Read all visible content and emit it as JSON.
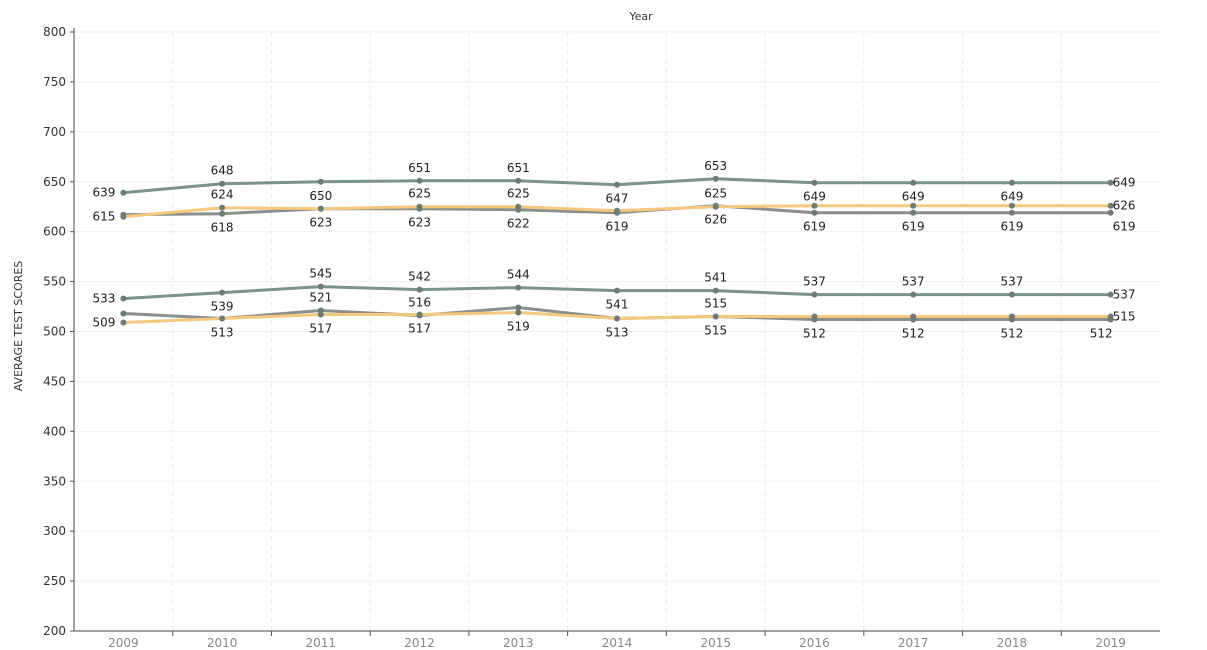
{
  "chart_data": {
    "type": "line",
    "title": "Year",
    "xlabel": "",
    "ylabel": "AVERAGE TEST SCORES",
    "categories": [
      "2009",
      "2010",
      "2011",
      "2012",
      "2013",
      "2014",
      "2015",
      "2016",
      "2017",
      "2018",
      "2019"
    ],
    "ylim": [
      200,
      800
    ],
    "yticks": [
      200,
      250,
      300,
      350,
      400,
      450,
      500,
      550,
      600,
      650,
      700,
      750,
      800
    ],
    "grid": true,
    "legend": "none",
    "series": [
      {
        "color": "#7a9488",
        "values": [
          639,
          648,
          650,
          651,
          651,
          647,
          653,
          649,
          649,
          649,
          649
        ]
      },
      {
        "color": "#888f8c",
        "values": [
          617,
          618,
          623,
          623,
          622,
          619,
          626,
          619,
          619,
          619,
          619
        ]
      },
      {
        "color": "#f5c880",
        "values": [
          615,
          624,
          623,
          625,
          625,
          621,
          625,
          626,
          626,
          626,
          626
        ]
      },
      {
        "color": "#7a9488",
        "values": [
          533,
          539,
          545,
          542,
          544,
          541,
          541,
          537,
          537,
          537,
          537
        ]
      },
      {
        "color": "#888f8c",
        "values": [
          518,
          513,
          521,
          516,
          524,
          513,
          515,
          512,
          512,
          512,
          512
        ]
      },
      {
        "color": "#f5c880",
        "values": [
          509,
          513,
          517,
          517,
          519,
          513,
          515,
          515,
          515,
          515,
          515
        ]
      }
    ],
    "data_labels": [
      {
        "text": "639",
        "series": 0,
        "index": 0,
        "pos": "left"
      },
      {
        "text": "648",
        "series": 0,
        "index": 1,
        "pos": "above"
      },
      {
        "text": "650",
        "series": 0,
        "index": 2,
        "pos": "below"
      },
      {
        "text": "651",
        "series": 0,
        "index": 3,
        "pos": "above"
      },
      {
        "text": "651",
        "series": 0,
        "index": 4,
        "pos": "above"
      },
      {
        "text": "647",
        "series": 0,
        "index": 5,
        "pos": "below"
      },
      {
        "text": "653",
        "series": 0,
        "index": 6,
        "pos": "above"
      },
      {
        "text": "649",
        "series": 0,
        "index": 7,
        "pos": "below"
      },
      {
        "text": "649",
        "series": 0,
        "index": 8,
        "pos": "below"
      },
      {
        "text": "649",
        "series": 0,
        "index": 9,
        "pos": "below"
      },
      {
        "text": "649",
        "series": 0,
        "index": 10,
        "pos": "right"
      },
      {
        "text": "615",
        "series": 2,
        "index": 0,
        "pos": "left"
      },
      {
        "text": "624",
        "series": 2,
        "index": 1,
        "pos": "above"
      },
      {
        "text": "625",
        "series": 2,
        "index": 3,
        "pos": "above"
      },
      {
        "text": "625",
        "series": 2,
        "index": 4,
        "pos": "above"
      },
      {
        "text": "625",
        "series": 2,
        "index": 6,
        "pos": "above"
      },
      {
        "text": "626",
        "series": 2,
        "index": 10,
        "pos": "right"
      },
      {
        "text": "618",
        "series": 1,
        "index": 1,
        "pos": "below"
      },
      {
        "text": "623",
        "series": 1,
        "index": 2,
        "pos": "below"
      },
      {
        "text": "623",
        "series": 1,
        "index": 3,
        "pos": "below"
      },
      {
        "text": "622",
        "series": 1,
        "index": 4,
        "pos": "below"
      },
      {
        "text": "619",
        "series": 1,
        "index": 5,
        "pos": "below"
      },
      {
        "text": "626",
        "series": 1,
        "index": 6,
        "pos": "below"
      },
      {
        "text": "619",
        "series": 1,
        "index": 7,
        "pos": "below"
      },
      {
        "text": "619",
        "series": 1,
        "index": 8,
        "pos": "below"
      },
      {
        "text": "619",
        "series": 1,
        "index": 9,
        "pos": "below"
      },
      {
        "text": "619",
        "series": 1,
        "index": 10,
        "pos": "belowright"
      },
      {
        "text": "533",
        "series": 3,
        "index": 0,
        "pos": "left"
      },
      {
        "text": "539",
        "series": 3,
        "index": 1,
        "pos": "below"
      },
      {
        "text": "545",
        "series": 3,
        "index": 2,
        "pos": "above"
      },
      {
        "text": "542",
        "series": 3,
        "index": 3,
        "pos": "above"
      },
      {
        "text": "544",
        "series": 3,
        "index": 4,
        "pos": "above"
      },
      {
        "text": "541",
        "series": 3,
        "index": 5,
        "pos": "below"
      },
      {
        "text": "541",
        "series": 3,
        "index": 6,
        "pos": "above"
      },
      {
        "text": "537",
        "series": 3,
        "index": 7,
        "pos": "above"
      },
      {
        "text": "537",
        "series": 3,
        "index": 8,
        "pos": "above"
      },
      {
        "text": "537",
        "series": 3,
        "index": 9,
        "pos": "above"
      },
      {
        "text": "537",
        "series": 3,
        "index": 10,
        "pos": "right"
      },
      {
        "text": "521",
        "series": 4,
        "index": 2,
        "pos": "above"
      },
      {
        "text": "516",
        "series": 4,
        "index": 3,
        "pos": "above"
      },
      {
        "text": "515",
        "series": 4,
        "index": 6,
        "pos": "above"
      },
      {
        "text": "509",
        "series": 5,
        "index": 0,
        "pos": "left"
      },
      {
        "text": "513",
        "series": 5,
        "index": 1,
        "pos": "below"
      },
      {
        "text": "517",
        "series": 5,
        "index": 2,
        "pos": "below"
      },
      {
        "text": "517",
        "series": 5,
        "index": 3,
        "pos": "below"
      },
      {
        "text": "519",
        "series": 5,
        "index": 4,
        "pos": "below"
      },
      {
        "text": "513",
        "series": 5,
        "index": 5,
        "pos": "below"
      },
      {
        "text": "515",
        "series": 5,
        "index": 6,
        "pos": "below"
      },
      {
        "text": "512",
        "series": 4,
        "index": 7,
        "pos": "below"
      },
      {
        "text": "512",
        "series": 4,
        "index": 8,
        "pos": "below"
      },
      {
        "text": "512",
        "series": 4,
        "index": 9,
        "pos": "below"
      },
      {
        "text": "512",
        "series": 4,
        "index": 10,
        "pos": "belowleft"
      },
      {
        "text": "515",
        "series": 5,
        "index": 10,
        "pos": "right"
      }
    ]
  }
}
